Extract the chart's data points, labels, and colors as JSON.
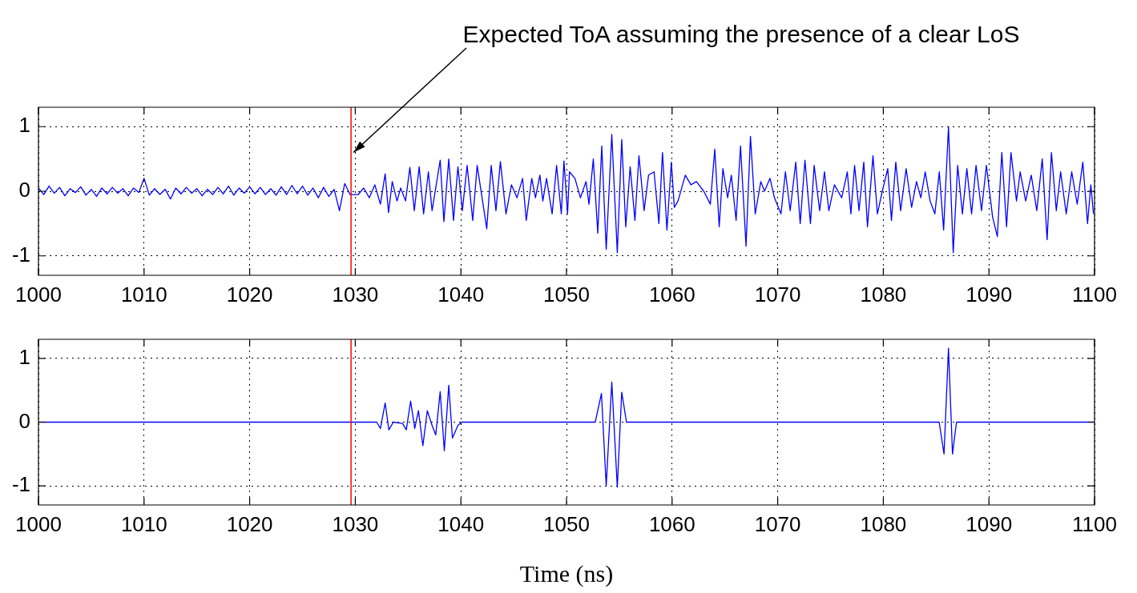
{
  "chart_data": [
    {
      "type": "line",
      "annotations": [
        {
          "text": "Expected ToA assuming the presence of a clear LoS",
          "x": 1029.6,
          "y": 0.6
        }
      ],
      "x": [
        1000,
        1000.5,
        1001,
        1001.5,
        1002,
        1002.5,
        1003,
        1003.5,
        1004,
        1004.5,
        1005,
        1005.5,
        1006,
        1006.5,
        1007,
        1007.5,
        1008,
        1008.5,
        1009,
        1009.5,
        1010,
        1010.5,
        1011,
        1011.5,
        1012,
        1012.5,
        1013,
        1013.5,
        1014,
        1014.5,
        1015,
        1015.5,
        1016,
        1016.5,
        1017,
        1017.5,
        1018,
        1018.5,
        1019,
        1019.5,
        1020,
        1020.5,
        1021,
        1021.5,
        1022,
        1022.5,
        1023,
        1023.5,
        1024,
        1024.5,
        1025,
        1025.5,
        1026,
        1026.5,
        1027,
        1027.5,
        1028,
        1028.5,
        1029,
        1029.5,
        1030.28,
        1030.8,
        1031.33,
        1031.85,
        1032.38,
        1032.83,
        1033.15,
        1033.5,
        1033.95,
        1034.3,
        1034.76,
        1035.17,
        1035.59,
        1036.05,
        1036.47,
        1036.92,
        1037.27,
        1038.04,
        1038.39,
        1038.85,
        1039.3,
        1039.72,
        1040.14,
        1040.59,
        1041.12,
        1041.54,
        1042.45,
        1042.87,
        1043.32,
        1043.74,
        1044.27,
        1044.79,
        1045.31,
        1045.84,
        1046.19,
        1046.71,
        1047.06,
        1047.48,
        1047.76,
        1048.11,
        1048.64,
        1049.06,
        1049.51,
        1049.76,
        1050.1,
        1050.28,
        1050.8,
        1051.32,
        1051.85,
        1052.13,
        1052.54,
        1052.96,
        1053.34,
        1053.76,
        1054.29,
        1054.81,
        1055.23,
        1055.61,
        1056.03,
        1056.48,
        1056.86,
        1057.35,
        1057.77,
        1058.29,
        1058.75,
        1059.09,
        1059.51,
        1059.93,
        1060.21,
        1060.56,
        1061.25,
        1061.78,
        1062.3,
        1063,
        1063.62,
        1064.04,
        1064.46,
        1064.81,
        1065.26,
        1065.61,
        1066.06,
        1066.48,
        1067,
        1067.42,
        1067.87,
        1068.4,
        1068.75,
        1069.27,
        1069.69,
        1070.31,
        1070.73,
        1071.18,
        1071.71,
        1072.13,
        1072.58,
        1073.1,
        1073.45,
        1073.97,
        1074.43,
        1074.84,
        1075.37,
        1076.06,
        1076.59,
        1076.93,
        1077.28,
        1077.7,
        1078.15,
        1078.5,
        1079.02,
        1079.44,
        1079.9,
        1080.42,
        1080.77,
        1081.18,
        1081.64,
        1082.16,
        1082.68,
        1083.14,
        1083.55,
        1083.97,
        1084.43,
        1084.88,
        1085.3,
        1085.71,
        1086.17,
        1086.62,
        1087.04,
        1087.49,
        1087.91,
        1088.36,
        1088.78,
        1089.3,
        1089.76,
        1090.35,
        1090.8,
        1091.22,
        1091.67,
        1092.09,
        1092.61,
        1092.96,
        1093.48,
        1094.01,
        1094.53,
        1095.05,
        1095.51,
        1095.92,
        1096.38,
        1096.79,
        1097.32,
        1097.84,
        1098.36,
        1098.89,
        1099.34,
        1099.65,
        1099.9
      ],
      "series": [
        {
          "color": "#0000ff",
          "values": [
            0.05,
            -0.05,
            0.08,
            -0.03,
            0.06,
            -0.07,
            0.04,
            -0.02,
            0.07,
            -0.06,
            0.03,
            -0.08,
            0.05,
            -0.04,
            0.06,
            -0.03,
            0.04,
            -0.07,
            0.05,
            -0.02,
            0.2,
            -0.06,
            0.04,
            -0.05,
            0.03,
            -0.12,
            0.05,
            -0.04,
            0.06,
            -0.03,
            0.04,
            -0.07,
            0.03,
            -0.05,
            0.06,
            -0.04,
            0.08,
            -0.06,
            0.05,
            -0.03,
            0.07,
            -0.04,
            0.06,
            -0.05,
            0.04,
            -0.06,
            0.07,
            -0.05,
            0.09,
            -0.04,
            0.08,
            -0.06,
            0.05,
            -0.1,
            0.06,
            -0.08,
            0.03,
            -0.3,
            0.12,
            -0.05,
            -0.05,
            0.05,
            -0.1,
            0.1,
            -0.2,
            0.27,
            -0.33,
            0.15,
            -0.15,
            0.05,
            -0.15,
            0.37,
            -0.3,
            0.38,
            -0.35,
            0.3,
            -0.3,
            0.48,
            -0.47,
            0.5,
            -0.45,
            0.38,
            -0.3,
            0.4,
            -0.45,
            0.4,
            -0.58,
            0.4,
            -0.3,
            0.46,
            -0.35,
            0.1,
            -0.1,
            0.2,
            -0.45,
            0.2,
            -0.1,
            0.25,
            -0.15,
            0.2,
            -0.35,
            0.4,
            -0.35,
            0.47,
            -0.35,
            0.3,
            0.2,
            -0.1,
            0.15,
            -0.2,
            0.5,
            -0.65,
            0.7,
            -0.9,
            0.88,
            -0.95,
            0.8,
            -0.55,
            0.38,
            -0.45,
            0.55,
            -0.3,
            0.25,
            0.3,
            -0.5,
            0.6,
            -0.6,
            0.45,
            -0.25,
            -0.15,
            0.25,
            0.1,
            0.15,
            0,
            -0.2,
            0.65,
            -0.55,
            0.35,
            -0.1,
            0.25,
            -0.45,
            0.7,
            -0.85,
            0.85,
            -0.35,
            0.15,
            0,
            0.2,
            -0.1,
            -0.35,
            0.3,
            -0.3,
            0.45,
            -0.5,
            0.48,
            -0.5,
            0.4,
            -0.3,
            0.3,
            -0.3,
            0.1,
            -0.1,
            0.3,
            -0.35,
            0.4,
            -0.3,
            0.45,
            -0.55,
            0.55,
            -0.35,
            0,
            0.35,
            -0.45,
            0.45,
            -0.3,
            0.35,
            -0.25,
            0.15,
            -0.1,
            0.3,
            -0.15,
            -0.35,
            0.3,
            -0.6,
            1.0,
            -0.95,
            0.4,
            -0.35,
            0.35,
            -0.35,
            0.4,
            -0.3,
            0.4,
            -0.4,
            -0.7,
            0.6,
            -0.55,
            0.6,
            -0.15,
            0.3,
            -0.15,
            0.25,
            -0.3,
            0.5,
            -0.75,
            0.6,
            -0.3,
            0.3,
            -0.35,
            0.3,
            -0.2,
            0.45,
            -0.5,
            0.1,
            -0.35
          ]
        }
      ],
      "xlim": [
        1000,
        1100
      ],
      "xticks": [
        1000,
        1010,
        1020,
        1030,
        1040,
        1050,
        1060,
        1070,
        1080,
        1090,
        1100
      ],
      "ylim": [
        -1.3,
        1.3
      ],
      "yticks": [
        -1,
        0,
        1
      ],
      "grid": true,
      "legend": false,
      "marker": "none",
      "line_style": "solid",
      "ref_lines": [
        {
          "axis": "x",
          "value": 1029.6,
          "color": "#ff0000"
        }
      ]
    },
    {
      "type": "line",
      "xlabel": "Time (ns)",
      "x": [
        1000,
        1032.03,
        1032.38,
        1032.83,
        1033.18,
        1033.6,
        1034.48,
        1034.83,
        1035.24,
        1035.63,
        1035.98,
        1036.4,
        1036.82,
        1037.27,
        1037.62,
        1038.04,
        1038.43,
        1038.85,
        1039.2,
        1039.72,
        1040.07,
        1052.72,
        1053.31,
        1053.76,
        1054.29,
        1054.81,
        1055.23,
        1055.68,
        1085.29,
        1085.75,
        1086.17,
        1086.55,
        1086.93,
        1100
      ],
      "series": [
        {
          "color": "#0000ff",
          "values": [
            0,
            0,
            -0.1,
            0.3,
            -0.12,
            0,
            -0.02,
            -0.12,
            0.33,
            -0.1,
            0.18,
            -0.37,
            0.18,
            -0.05,
            -0.2,
            0.48,
            -0.45,
            0.58,
            -0.25,
            -0.05,
            0,
            0,
            0.45,
            -1.0,
            0.63,
            -1.02,
            0.47,
            0,
            0,
            -0.5,
            1.16,
            -0.5,
            0,
            0
          ]
        }
      ],
      "xlim": [
        1000,
        1100
      ],
      "xticks": [
        1000,
        1010,
        1020,
        1030,
        1040,
        1050,
        1060,
        1070,
        1080,
        1090,
        1100
      ],
      "ylim": [
        -1.3,
        1.3
      ],
      "yticks": [
        -1,
        0,
        1
      ],
      "grid": true,
      "legend": false,
      "marker": "none",
      "line_style": "solid",
      "ref_lines": [
        {
          "axis": "x",
          "value": 1029.6,
          "color": "#ff0000"
        }
      ]
    }
  ]
}
